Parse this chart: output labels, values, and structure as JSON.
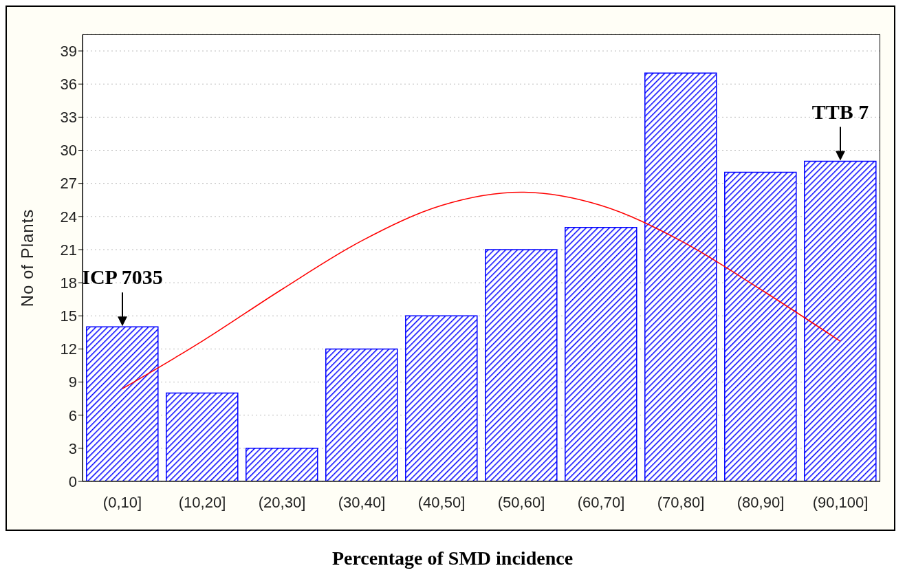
{
  "chart_data": {
    "type": "bar",
    "xlabel": "Percentage of SMD incidence",
    "ylabel": "No of Plants",
    "categories": [
      "(0,10]",
      "(10,20]",
      "(20,30]",
      "(30,40]",
      "(40,50]",
      "(50,60]",
      "(60,70]",
      "(70,80]",
      "(80,90]",
      "(90,100]"
    ],
    "series": [
      {
        "color": "#0000ff",
        "values": [
          14,
          8,
          3,
          12,
          15,
          21,
          23,
          37,
          28,
          29
        ]
      },
      {
        "type": "line",
        "color": "#ff0000",
        "values": [
          8.4,
          12.7,
          17.4,
          21.8,
          25.0,
          26.2,
          25.0,
          21.8,
          17.4,
          12.7
        ]
      }
    ],
    "ylim": [
      0,
      40.5
    ],
    "yticks": [
      0,
      3,
      6,
      9,
      12,
      15,
      18,
      21,
      24,
      27,
      30,
      33,
      36,
      39
    ],
    "grid": "y",
    "line_style": "solid",
    "marker": "none",
    "annotations": [
      {
        "text": "ICP 7035",
        "x": "(0,10]",
        "y": 14
      },
      {
        "text": "TTB 7",
        "x": "(90,100]",
        "y": 29
      }
    ]
  }
}
